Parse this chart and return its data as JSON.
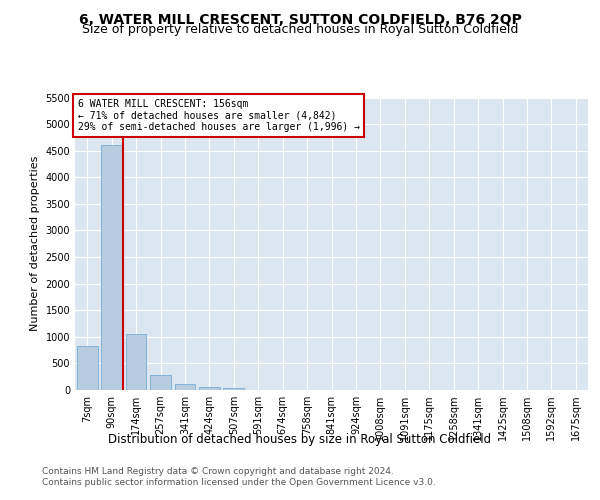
{
  "title": "6, WATER MILL CRESCENT, SUTTON COLDFIELD, B76 2QP",
  "subtitle": "Size of property relative to detached houses in Royal Sutton Coldfield",
  "xlabel": "Distribution of detached houses by size in Royal Sutton Coldfield",
  "ylabel": "Number of detached properties",
  "categories": [
    "7sqm",
    "90sqm",
    "174sqm",
    "257sqm",
    "341sqm",
    "424sqm",
    "507sqm",
    "591sqm",
    "674sqm",
    "758sqm",
    "841sqm",
    "924sqm",
    "1008sqm",
    "1091sqm",
    "1175sqm",
    "1258sqm",
    "1341sqm",
    "1425sqm",
    "1508sqm",
    "1592sqm",
    "1675sqm"
  ],
  "values": [
    830,
    4600,
    1050,
    290,
    110,
    60,
    30,
    5,
    0,
    0,
    0,
    0,
    0,
    0,
    0,
    0,
    0,
    0,
    0,
    0,
    0
  ],
  "bar_color": "#b8ccdf",
  "bar_edge_color": "#7aaed6",
  "property_line_color": "#cc0000",
  "property_line_x": 1.47,
  "annotation_text": "6 WATER MILL CRESCENT: 156sqm\n← 71% of detached houses are smaller (4,842)\n29% of semi-detached houses are larger (1,996) →",
  "annotation_box_color": "#ffffff",
  "annotation_box_edge_color": "#cc0000",
  "ylim": [
    0,
    5500
  ],
  "yticks": [
    0,
    500,
    1000,
    1500,
    2000,
    2500,
    3000,
    3500,
    4000,
    4500,
    5000,
    5500
  ],
  "plot_bg_color": "#dce6f0",
  "footer": "Contains HM Land Registry data © Crown copyright and database right 2024.\nContains public sector information licensed under the Open Government Licence v3.0.",
  "title_fontsize": 10,
  "subtitle_fontsize": 9,
  "xlabel_fontsize": 8.5,
  "ylabel_fontsize": 8,
  "tick_fontsize": 7,
  "footer_fontsize": 6.5
}
